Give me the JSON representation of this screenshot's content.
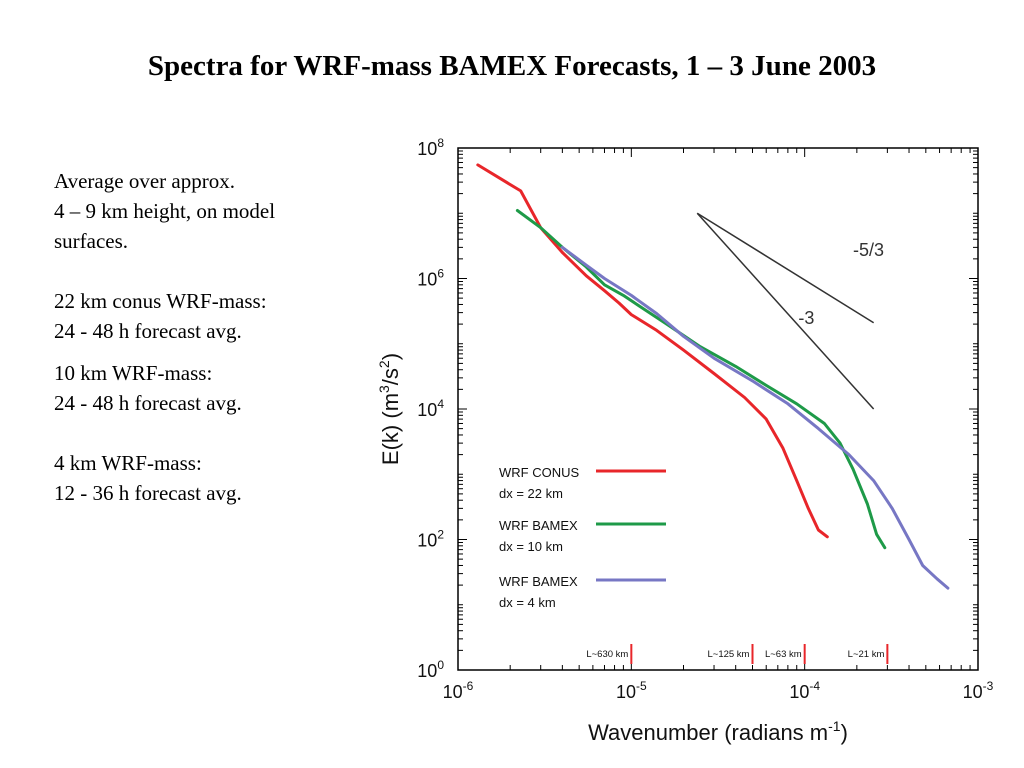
{
  "slide": {
    "title": "Spectra for WRF-mass BAMEX Forecasts, 1 – 3 June 2003",
    "notes": [
      "Average over approx.\n4 – 9 km height, on model\nsurfaces.",
      "22 km conus WRF-mass:\n24 - 48 h forecast avg.",
      "10 km WRF-mass:\n24 - 48 h forecast avg.",
      "4 km WRF-mass:\n12 - 36 h forecast avg."
    ]
  },
  "chart_data": {
    "type": "line",
    "x_scale": "log",
    "y_scale": "log",
    "xlabel": "Wavenumber  (radians m",
    "xlabel_sup": "-1",
    "xlabel_end": ")",
    "ylabel": "E(k)  (m",
    "ylabel_sup": "3",
    "ylabel_mid": "/s",
    "ylabel_sup2": "2",
    "ylabel_end": ")",
    "xlim": [
      1e-06,
      0.001
    ],
    "ylim": [
      1,
      100000000.0
    ],
    "x_ticks": [
      {
        "value": 1e-06,
        "base": "10",
        "exp": "-6"
      },
      {
        "value": 1e-05,
        "base": "10",
        "exp": "-5"
      },
      {
        "value": 0.0001,
        "base": "10",
        "exp": "-4"
      },
      {
        "value": 0.001,
        "base": "10",
        "exp": "-3"
      }
    ],
    "y_ticks": [
      {
        "value": 1,
        "base": "10",
        "exp": "0"
      },
      {
        "value": 100,
        "base": "10",
        "exp": "2"
      },
      {
        "value": 10000,
        "base": "10",
        "exp": "4"
      },
      {
        "value": 1000000,
        "base": "10",
        "exp": "6"
      },
      {
        "value": 100000000,
        "base": "10",
        "exp": "8"
      }
    ],
    "grid": false,
    "legend_position": "lower-left",
    "series": [
      {
        "label": "WRF CONUS",
        "label2": "dx = 22 km",
        "color": "#e8262a",
        "points": [
          [
            1.3e-06,
            55000000.0
          ],
          [
            2.3e-06,
            22000000.0
          ],
          [
            3e-06,
            6000000.0
          ],
          [
            4e-06,
            2500000.0
          ],
          [
            5.5e-06,
            1100000.0
          ],
          [
            7e-06,
            650000.0
          ],
          [
            8.5e-06,
            420000.0
          ],
          [
            1e-05,
            280000.0
          ],
          [
            1.4e-05,
            160000.0
          ],
          [
            2e-05,
            80000.0
          ],
          [
            3e-05,
            35000.0
          ],
          [
            4.5e-05,
            15000.0
          ],
          [
            6e-05,
            7000.0
          ],
          [
            7.5e-05,
            2500.0
          ],
          [
            9e-05,
            800.0
          ],
          [
            0.000105,
            300.0
          ],
          [
            0.00012,
            140.0
          ],
          [
            0.000135,
            110.0
          ]
        ]
      },
      {
        "label": "WRF BAMEX",
        "label2": "dx = 10 km",
        "color": "#1e9a48",
        "points": [
          [
            2.2e-06,
            11000000.0
          ],
          [
            3e-06,
            6000000.0
          ],
          [
            4e-06,
            3000000.0
          ],
          [
            5.5e-06,
            1500000.0
          ],
          [
            7e-06,
            800000.0
          ],
          [
            9e-06,
            550000.0
          ],
          [
            1.2e-05,
            330000.0
          ],
          [
            1.6e-05,
            200000.0
          ],
          [
            2.5e-05,
            90000.0
          ],
          [
            4e-05,
            45000.0
          ],
          [
            6e-05,
            23000.0
          ],
          [
            9e-05,
            12000.0
          ],
          [
            0.00013,
            6000.0
          ],
          [
            0.00016,
            3000.0
          ],
          [
            0.00019,
            1200.0
          ],
          [
            0.00023,
            350.0
          ],
          [
            0.00026,
            120.0
          ],
          [
            0.00029,
            75.0
          ]
        ]
      },
      {
        "label": "WRF BAMEX",
        "label2": "dx = 4 km",
        "color": "#7777c4",
        "points": [
          [
            4e-06,
            3000000.0
          ],
          [
            5.5e-06,
            1600000.0
          ],
          [
            7e-06,
            1000000.0
          ],
          [
            1e-05,
            550000.0
          ],
          [
            1.4e-05,
            290000.0
          ],
          [
            2e-05,
            130000.0
          ],
          [
            3e-05,
            60000.0
          ],
          [
            5e-05,
            27000.0
          ],
          [
            8e-05,
            12000.0
          ],
          [
            0.00012,
            5000.0
          ],
          [
            0.00018,
            2000.0
          ],
          [
            0.00025,
            800.0
          ],
          [
            0.00032,
            300.0
          ],
          [
            0.0004,
            100.0
          ],
          [
            0.00048,
            40.0
          ],
          [
            0.00058,
            25.0
          ],
          [
            0.00067,
            18.0
          ]
        ]
      }
    ],
    "reference_lines": [
      {
        "label": "-5/3",
        "points": [
          [
            2.4e-05,
            10000000.0
          ],
          [
            0.00025,
            210000.0
          ]
        ],
        "label_pos": [
          0.00019,
          2200000.0
        ]
      },
      {
        "label": "-3",
        "points": [
          [
            2.4e-05,
            10000000.0
          ],
          [
            0.00025,
            10000.0
          ]
        ],
        "label_pos": [
          9.2e-05,
          200000.0
        ]
      }
    ],
    "scale_markers": [
      {
        "label": "L~630 km",
        "x": 1e-05
      },
      {
        "label": "L~125 km",
        "x": 5e-05
      },
      {
        "label": "L~63 km",
        "x": 0.0001
      },
      {
        "label": "L~21 km",
        "x": 0.0003
      }
    ],
    "colors": {
      "axis": "#000000",
      "reference": "#333333",
      "marker": "#e8262a"
    }
  }
}
